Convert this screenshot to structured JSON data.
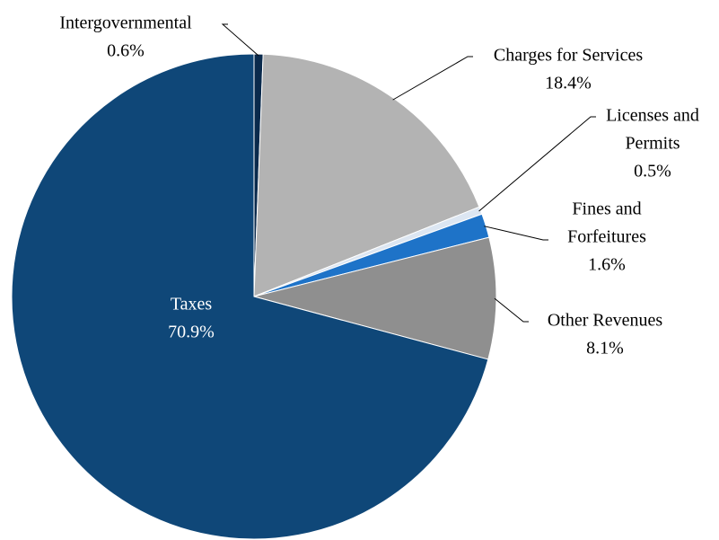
{
  "chart_data": {
    "type": "pie",
    "start_angle_deg": 0,
    "direction": "clockwise",
    "slices": [
      {
        "name": "Intergovernmental",
        "label_lines": [
          "Intergovernmental"
        ],
        "value": 0.6,
        "value_label": "0.6%",
        "color": "#0a2a4c"
      },
      {
        "name": "Charges for Services",
        "label_lines": [
          "Charges for Services"
        ],
        "value": 18.4,
        "value_label": "18.4%",
        "color": "#b3b3b3"
      },
      {
        "name": "Licenses and Permits",
        "label_lines": [
          "Licenses and",
          "Permits"
        ],
        "value": 0.5,
        "value_label": "0.5%",
        "color": "#dce6f2"
      },
      {
        "name": "Fines and Forfeitures",
        "label_lines": [
          "Fines and",
          "Forfeitures"
        ],
        "value": 1.6,
        "value_label": "1.6%",
        "color": "#1e73c8"
      },
      {
        "name": "Other Revenues",
        "label_lines": [
          "Other Revenues"
        ],
        "value": 8.1,
        "value_label": "8.1%",
        "color": "#8f8f8f"
      },
      {
        "name": "Taxes",
        "label_lines": [
          "Taxes"
        ],
        "value": 70.9,
        "value_label": "70.9%",
        "color": "#0f4778"
      }
    ]
  }
}
